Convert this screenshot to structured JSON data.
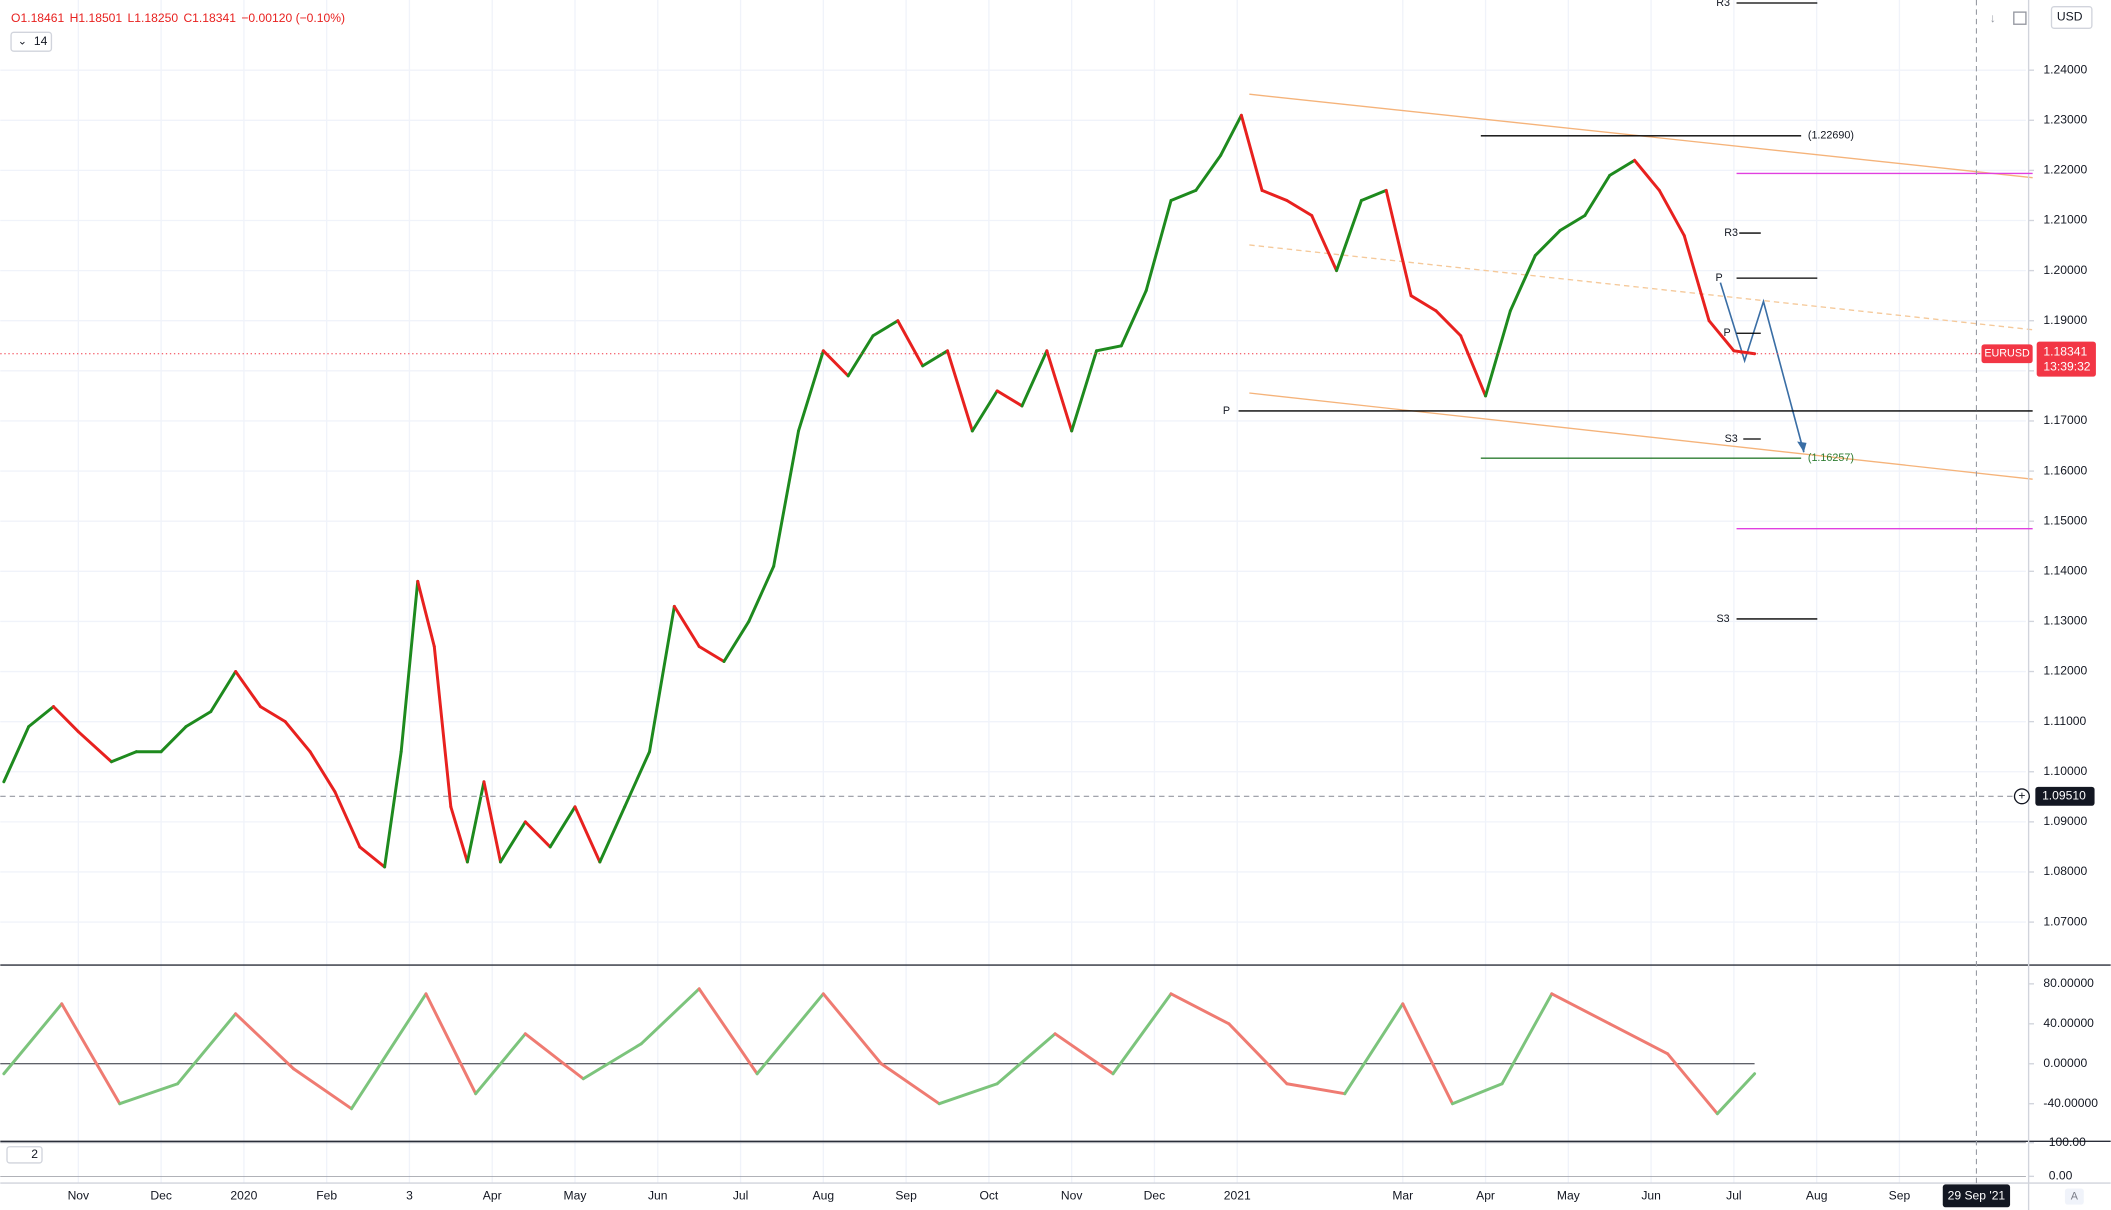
{
  "header": {
    "ohlc": [
      "O1.18461",
      "H1.18501",
      "L1.18250",
      "C1.18341",
      "−0.00120 (−0.10%)"
    ],
    "period": "14",
    "currency": "USD"
  },
  "chart_data": {
    "type": "line",
    "x": [
      -0.9,
      -0.6,
      -0.3,
      0,
      0.4,
      0.7,
      1,
      1.3,
      1.6,
      1.9,
      2.2,
      2.5,
      2.8,
      3.1,
      3.4,
      3.7,
      3.9,
      4.1,
      4.3,
      4.5,
      4.7,
      4.9,
      5.1,
      5.4,
      5.7,
      6,
      6.3,
      6.6,
      6.9,
      7.2,
      7.5,
      7.8,
      8.1,
      8.4,
      8.7,
      9,
      9.3,
      9.6,
      9.9,
      10.2,
      10.5,
      10.8,
      11.1,
      11.4,
      11.7,
      12,
      12.3,
      12.6,
      12.9,
      13.2,
      13.5,
      13.8,
      14.05,
      14.3,
      14.6,
      14.9,
      15.2,
      15.5,
      15.8,
      16.1,
      16.4,
      16.7,
      17,
      17.3,
      17.6,
      17.9,
      18.2,
      18.5,
      18.8,
      19.1,
      19.4,
      19.7,
      20,
      20.25
    ],
    "series": [
      {
        "name": "EURUSD",
        "up_color": "#1e8a1e",
        "down_color": "#e8211f",
        "values": [
          1.098,
          1.109,
          1.113,
          1.108,
          1.102,
          1.104,
          1.104,
          1.109,
          1.112,
          1.12,
          1.113,
          1.11,
          1.104,
          1.096,
          1.085,
          1.081,
          1.104,
          1.138,
          1.125,
          1.093,
          1.082,
          1.098,
          1.082,
          1.09,
          1.085,
          1.093,
          1.082,
          1.093,
          1.104,
          1.133,
          1.125,
          1.122,
          1.13,
          1.141,
          1.168,
          1.184,
          1.179,
          1.187,
          1.19,
          1.181,
          1.184,
          1.168,
          1.176,
          1.173,
          1.184,
          1.168,
          1.184,
          1.185,
          1.196,
          1.214,
          1.216,
          1.223,
          1.231,
          1.216,
          1.214,
          1.211,
          1.2,
          1.214,
          1.216,
          1.195,
          1.192,
          1.187,
          1.175,
          1.192,
          1.203,
          1.208,
          1.211,
          1.219,
          1.222,
          1.216,
          1.207,
          1.19,
          1.184,
          1.18341
        ]
      }
    ],
    "xlim": [
      -0.943,
      23.528
    ],
    "xticks": [
      {
        "value": 0,
        "label": "Nov"
      },
      {
        "value": 1,
        "label": "Dec"
      },
      {
        "value": 2,
        "label": "2020"
      },
      {
        "value": 3,
        "label": "Feb"
      },
      {
        "value": 4,
        "label": "3"
      },
      {
        "value": 5,
        "label": "Apr"
      },
      {
        "value": 6,
        "label": "May"
      },
      {
        "value": 7,
        "label": "Jun"
      },
      {
        "value": 8,
        "label": "Jul"
      },
      {
        "value": 9,
        "label": "Aug"
      },
      {
        "value": 10,
        "label": "Sep"
      },
      {
        "value": 11,
        "label": "Oct"
      },
      {
        "value": 12,
        "label": "Nov"
      },
      {
        "value": 13,
        "label": "Dec"
      },
      {
        "value": 14,
        "label": "2021"
      },
      {
        "value": 16,
        "label": "Mar"
      },
      {
        "value": 17,
        "label": "Apr"
      },
      {
        "value": 18,
        "label": "May"
      },
      {
        "value": 19,
        "label": "Jun"
      },
      {
        "value": 20,
        "label": "Jul"
      },
      {
        "value": 21,
        "label": "Aug"
      },
      {
        "value": 22,
        "label": "Sep"
      }
    ],
    "ylim": [
      1.0617,
      1.254
    ],
    "yticks": [
      {
        "value": 1.07,
        "label": "1.07000"
      },
      {
        "value": 1.08,
        "label": "1.08000"
      },
      {
        "value": 1.09,
        "label": "1.09000"
      },
      {
        "value": 1.1,
        "label": "1.10000"
      },
      {
        "value": 1.11,
        "label": "1.11000"
      },
      {
        "value": 1.12,
        "label": "1.12000"
      },
      {
        "value": 1.13,
        "label": "1.13000"
      },
      {
        "value": 1.14,
        "label": "1.14000"
      },
      {
        "value": 1.15,
        "label": "1.15000"
      },
      {
        "value": 1.16,
        "label": "1.16000"
      },
      {
        "value": 1.17,
        "label": "1.17000"
      },
      {
        "value": 1.18,
        "label": "1.18000"
      },
      {
        "value": 1.19,
        "label": "1.19000"
      },
      {
        "value": 1.2,
        "label": "1.20000"
      },
      {
        "value": 1.21,
        "label": "1.21000"
      },
      {
        "value": 1.22,
        "label": "1.22000"
      },
      {
        "value": 1.23,
        "label": "1.23000"
      },
      {
        "value": 1.24,
        "label": "1.24000"
      }
    ],
    "grid": true,
    "levels": [
      {
        "label": "R3",
        "value": 1.2534,
        "color": "#000000"
      },
      {
        "label": "(1.22690)",
        "value": 1.2269,
        "color": "#000000"
      },
      {
        "value": 1.2194,
        "color": "#e040e0"
      },
      {
        "label": "R3",
        "value": 1.2075,
        "color": "#000000"
      },
      {
        "label": "P",
        "value": 1.1985,
        "color": "#000000"
      },
      {
        "label": "P",
        "value": 1.1875,
        "color": "#000000"
      },
      {
        "label": "P",
        "value": 1.172,
        "color": "#000000"
      },
      {
        "label": "S3",
        "value": 1.1664,
        "color": "#000000"
      },
      {
        "label": "(1.16257)",
        "value": 1.16257,
        "color": "#2e7d32"
      },
      {
        "value": 1.1485,
        "color": "#e040e0"
      },
      {
        "label": "S3",
        "value": 1.1305,
        "color": "#000000"
      }
    ],
    "last_price": {
      "value": 1.18341,
      "label": "1.18341",
      "countdown": "13:39:32",
      "color": "#f23645"
    },
    "crosshair": {
      "value": 1.0951,
      "label": "1.09510",
      "x": 22.93,
      "date": "29 Sep '21"
    }
  },
  "oscillator": {
    "x": [
      -0.9,
      -0.2,
      0.5,
      1.2,
      1.9,
      2.6,
      3.3,
      4.2,
      4.8,
      5.4,
      6.1,
      6.8,
      7.5,
      8.2,
      9,
      9.7,
      10.4,
      11.1,
      11.8,
      12.5,
      13.2,
      13.9,
      14.6,
      15.3,
      16,
      16.6,
      17.2,
      17.8,
      18.5,
      19.2,
      19.8,
      20.25
    ],
    "values": [
      -10,
      60,
      -40,
      -20,
      50,
      -5,
      -45,
      70,
      -30,
      30,
      -15,
      20,
      75,
      -10,
      70,
      0,
      -40,
      -20,
      30,
      -10,
      70,
      40,
      -20,
      -30,
      60,
      -40,
      -20,
      70,
      40,
      10,
      -50,
      -10
    ],
    "up_color": "#7cc47c",
    "down_color": "#ef7b72",
    "ylim": [
      -77.7,
      97.5
    ],
    "yticks": [
      {
        "value": 80,
        "label": "80.00000"
      },
      {
        "value": 40,
        "label": "40.00000"
      },
      {
        "value": 0,
        "label": "0.00000"
      },
      {
        "value": -40,
        "label": "-40.00000"
      }
    ]
  },
  "oscillator2": {
    "label": "2",
    "ylim": [
      -16,
      104
    ],
    "yticks": [
      {
        "value": 100,
        "label": "100.00"
      },
      {
        "value": 0,
        "label": "0.00"
      }
    ]
  },
  "scale_mode": "A"
}
